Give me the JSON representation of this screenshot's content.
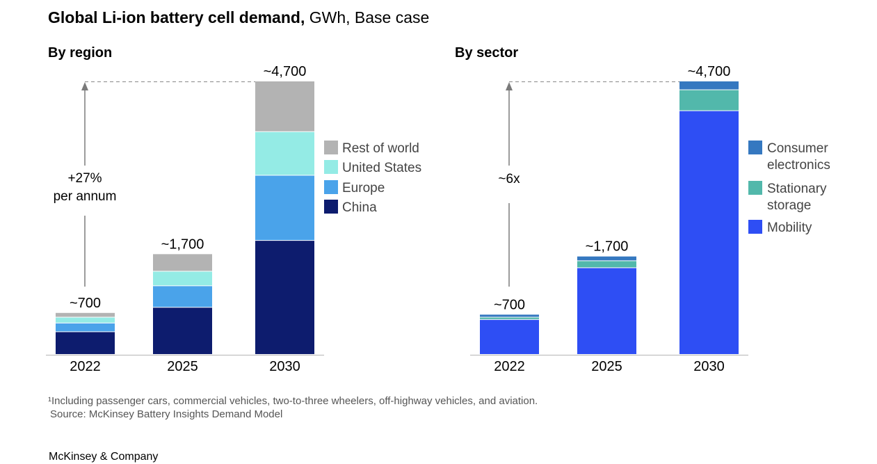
{
  "header": {
    "title_bold": "Global Li-ion battery cell demand,",
    "title_light": " GWh, Base case"
  },
  "footer": {
    "footnote": "¹Including passenger cars, commercial vehicles, two-to-three wheelers, off-highway vehicles, and aviation.",
    "source": "Source: McKinsey Battery Insights Demand Model",
    "brand": "McKinsey & Company"
  },
  "chart_data": [
    {
      "type": "bar",
      "stacked": true,
      "title": "By region",
      "categories": [
        "2022",
        "2025",
        "2030"
      ],
      "totals_labels": [
        "~700",
        "~1,700",
        "~4,700"
      ],
      "ylim": [
        0,
        4700
      ],
      "grid": false,
      "legend": "right",
      "series": [
        {
          "name": "China",
          "color": "#0d1c6e",
          "values": [
            390,
            810,
            1960
          ]
        },
        {
          "name": "Europe",
          "color": "#4aa3ea",
          "values": [
            150,
            370,
            1120
          ]
        },
        {
          "name": "United States",
          "color": "#94ebe5",
          "values": [
            100,
            250,
            750
          ]
        },
        {
          "name": "Rest of world",
          "color": "#b3b3b3",
          "values": [
            80,
            300,
            870
          ]
        }
      ],
      "annotation": {
        "line1": "+27%",
        "line2": "per annum"
      }
    },
    {
      "type": "bar",
      "stacked": true,
      "title": "By sector",
      "categories": [
        "2022",
        "2025",
        "2030"
      ],
      "totals_labels": [
        "~700",
        "~1,700",
        "~4,700"
      ],
      "ylim": [
        0,
        4700
      ],
      "grid": false,
      "legend": "right",
      "series": [
        {
          "name": "Mobility",
          "color": "#2e4ef4",
          "values": [
            600,
            1490,
            4190
          ],
          "label_lines": [
            "Mobility"
          ]
        },
        {
          "name": "Stationary storage",
          "color": "#52b8ab",
          "values": [
            40,
            120,
            360
          ],
          "label_lines": [
            "Stationary",
            "storage"
          ]
        },
        {
          "name": "Consumer electronics",
          "color": "#3578c0",
          "values": [
            50,
            80,
            150
          ],
          "label_lines": [
            "Consumer",
            "electronics"
          ]
        }
      ],
      "annotation": {
        "line1": "~6x",
        "line2": ""
      }
    }
  ]
}
